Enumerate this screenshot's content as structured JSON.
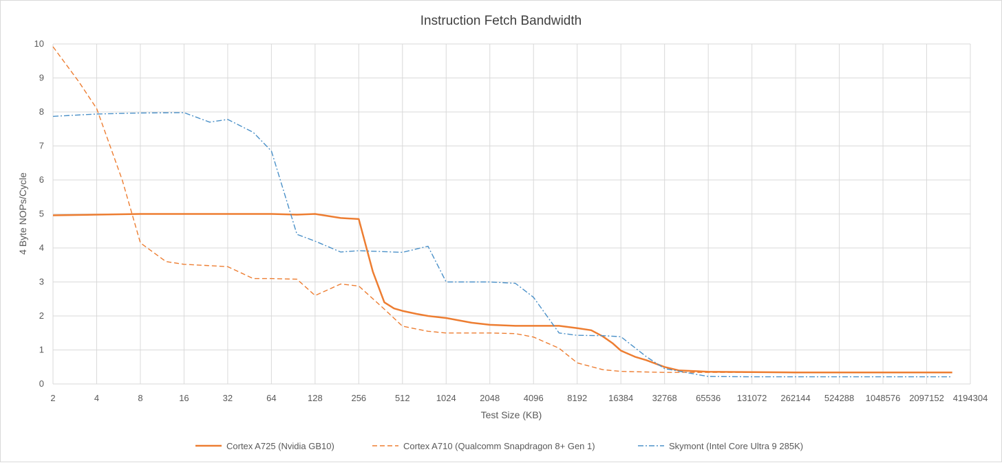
{
  "chart_data": {
    "type": "line",
    "title": "Instruction Fetch Bandwidth",
    "xlabel": "Test Size (KB)",
    "ylabel": "4 Byte NOPs/Cycle",
    "x_scale": "log2",
    "xlim": [
      2,
      4194304
    ],
    "ylim": [
      0,
      10
    ],
    "x_ticks": [
      "2",
      "4",
      "8",
      "16",
      "32",
      "64",
      "128",
      "256",
      "512",
      "1024",
      "2048",
      "4096",
      "8192",
      "16384",
      "32768",
      "65536",
      "131072",
      "262144",
      "524288",
      "1048576",
      "2097152",
      "4194304"
    ],
    "y_ticks": [
      "0",
      "1",
      "2",
      "3",
      "4",
      "5",
      "6",
      "7",
      "8",
      "9",
      "10"
    ],
    "grid": true,
    "legend_position": "bottom",
    "series": [
      {
        "name": "Cortex A725 (Nvidia GB10)",
        "color": "#ed7d31",
        "dash": "solid",
        "points": [
          [
            2,
            4.96
          ],
          [
            4,
            4.98
          ],
          [
            8,
            5.0
          ],
          [
            16,
            5.0
          ],
          [
            32,
            5.0
          ],
          [
            64,
            5.0
          ],
          [
            96,
            4.98
          ],
          [
            128,
            5.0
          ],
          [
            192,
            4.88
          ],
          [
            256,
            4.85
          ],
          [
            320,
            3.3
          ],
          [
            384,
            2.4
          ],
          [
            448,
            2.22
          ],
          [
            512,
            2.15
          ],
          [
            640,
            2.06
          ],
          [
            768,
            2.0
          ],
          [
            1024,
            1.94
          ],
          [
            1536,
            1.8
          ],
          [
            2048,
            1.74
          ],
          [
            3072,
            1.71
          ],
          [
            4096,
            1.71
          ],
          [
            6144,
            1.71
          ],
          [
            8192,
            1.64
          ],
          [
            10240,
            1.58
          ],
          [
            12288,
            1.4
          ],
          [
            14336,
            1.2
          ],
          [
            16384,
            0.98
          ],
          [
            20480,
            0.8
          ],
          [
            24576,
            0.7
          ],
          [
            32768,
            0.5
          ],
          [
            40960,
            0.4
          ],
          [
            65536,
            0.36
          ],
          [
            131072,
            0.35
          ],
          [
            262144,
            0.34
          ],
          [
            524288,
            0.34
          ],
          [
            1048576,
            0.34
          ],
          [
            2097152,
            0.34
          ],
          [
            3145728,
            0.34
          ]
        ]
      },
      {
        "name": "Cortex A710 (Qualcomm Snapdragon 8+ Gen 1)",
        "color": "#ed7d31",
        "dash": "dashed",
        "points": [
          [
            2,
            9.92
          ],
          [
            3,
            8.9
          ],
          [
            4,
            8.1
          ],
          [
            6,
            6.0
          ],
          [
            8,
            4.15
          ],
          [
            12,
            3.6
          ],
          [
            16,
            3.52
          ],
          [
            32,
            3.45
          ],
          [
            48,
            3.1
          ],
          [
            64,
            3.1
          ],
          [
            96,
            3.08
          ],
          [
            128,
            2.6
          ],
          [
            192,
            2.94
          ],
          [
            256,
            2.88
          ],
          [
            384,
            2.2
          ],
          [
            512,
            1.7
          ],
          [
            768,
            1.55
          ],
          [
            1024,
            1.5
          ],
          [
            2048,
            1.5
          ],
          [
            3072,
            1.48
          ],
          [
            4096,
            1.38
          ],
          [
            6144,
            1.05
          ],
          [
            8192,
            0.62
          ],
          [
            12288,
            0.42
          ],
          [
            16384,
            0.37
          ],
          [
            32768,
            0.34
          ],
          [
            65536,
            0.34
          ],
          [
            131072,
            0.34
          ],
          [
            262144,
            0.34
          ],
          [
            524288,
            0.34
          ],
          [
            1048576,
            0.34
          ],
          [
            2097152,
            0.34
          ],
          [
            3145728,
            0.34
          ]
        ]
      },
      {
        "name": "Skymont (Intel Core Ultra 9 285K)",
        "color": "#4a90c8",
        "dash": "dashdot",
        "points": [
          [
            2,
            7.87
          ],
          [
            4,
            7.94
          ],
          [
            8,
            7.97
          ],
          [
            16,
            7.98
          ],
          [
            24,
            7.7
          ],
          [
            32,
            7.78
          ],
          [
            48,
            7.4
          ],
          [
            64,
            6.85
          ],
          [
            96,
            4.4
          ],
          [
            128,
            4.2
          ],
          [
            192,
            3.88
          ],
          [
            256,
            3.92
          ],
          [
            512,
            3.87
          ],
          [
            768,
            4.05
          ],
          [
            1024,
            3.0
          ],
          [
            2048,
            3.0
          ],
          [
            3072,
            2.96
          ],
          [
            4096,
            2.55
          ],
          [
            6144,
            1.5
          ],
          [
            8192,
            1.43
          ],
          [
            12288,
            1.42
          ],
          [
            16384,
            1.39
          ],
          [
            24576,
            0.8
          ],
          [
            32768,
            0.45
          ],
          [
            65536,
            0.22
          ],
          [
            131072,
            0.21
          ],
          [
            262144,
            0.21
          ],
          [
            524288,
            0.21
          ],
          [
            1048576,
            0.21
          ],
          [
            2097152,
            0.21
          ],
          [
            3145728,
            0.21
          ]
        ]
      }
    ]
  }
}
